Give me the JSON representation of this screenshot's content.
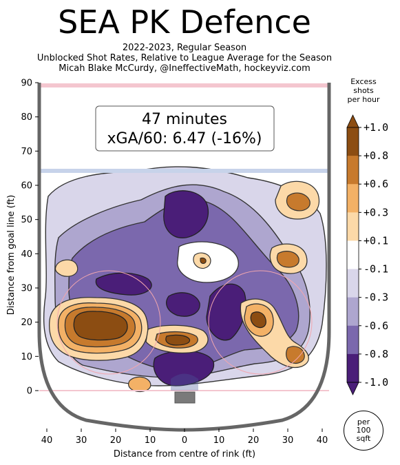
{
  "header": {
    "title": "SEA PK Defence",
    "subtitle_lines": [
      "2022-2023, Regular Season",
      "Unblocked Shot Rates, Relative to League Average for the Season",
      "Micah Blake McCurdy, @IneffectiveMath, hockeyviz.com"
    ]
  },
  "summary_box": {
    "minutes": "47 minutes",
    "xga": "xGA/60: 6.47 (-16%)"
  },
  "colorbar": {
    "title_lines": [
      "Excess",
      "shots",
      "per hour"
    ],
    "ticks": [
      "+1.0",
      "+0.8",
      "+0.6",
      "+0.3",
      "+0.1",
      "-0.1",
      "-0.3",
      "-0.6",
      "-0.8",
      "-1.0"
    ],
    "colors": [
      "#8c4d12",
      "#c77a2d",
      "#f3b166",
      "#fcd9a8",
      "#ffffff",
      "#d9d6ea",
      "#aea6cf",
      "#7b68ad",
      "#4a1e78"
    ],
    "per_label_lines": [
      "per",
      "100",
      "sqft"
    ]
  },
  "chart_data": {
    "type": "heatmap",
    "title": "SEA PK Defence",
    "xlabel": "Distance from centre of rink (ft)",
    "ylabel": "Distance from goal line (ft)",
    "xlim": [
      42,
      -42
    ],
    "ylim": [
      -11,
      90
    ],
    "x_ticks": [
      40,
      30,
      20,
      10,
      0,
      10,
      20,
      30,
      40
    ],
    "x_tick_values": [
      40,
      30,
      20,
      10,
      0,
      -10,
      -20,
      -30,
      -40
    ],
    "y_ticks": [
      0,
      10,
      20,
      30,
      40,
      50,
      60,
      70,
      80,
      90
    ],
    "blue_line_ft": 64,
    "red_line_ft": 89,
    "legend_placement": "right colorbar",
    "regions": [
      {
        "x": 22,
        "y": 19.5,
        "value": 1.0,
        "label": "left faceoff circle hot zone"
      },
      {
        "x": 1,
        "y": 15,
        "value": 1.0,
        "label": "slot"
      },
      {
        "x": -22,
        "y": 20.5,
        "value": 1.0,
        "label": "right faceoff circle"
      },
      {
        "x": -32,
        "y": 10,
        "value": 0.8
      },
      {
        "x": -33,
        "y": 56,
        "value": 0.8
      },
      {
        "x": -30,
        "y": 39,
        "value": 0.8
      },
      {
        "x": 33,
        "y": 36.5,
        "value": 0.3
      },
      {
        "x": 13,
        "y": 2,
        "value": 0.6
      },
      {
        "x": -6,
        "y": 38,
        "value": 0.6
      },
      {
        "x": -2,
        "y": 53,
        "value": -1.0
      },
      {
        "x": 1,
        "y": 5.5,
        "value": -1.0
      },
      {
        "x": -11,
        "y": 18,
        "value": -1.0
      },
      {
        "x": 14,
        "y": 30.5,
        "value": -0.8
      },
      {
        "x": 25,
        "y": 11,
        "value": -0.6
      }
    ]
  }
}
